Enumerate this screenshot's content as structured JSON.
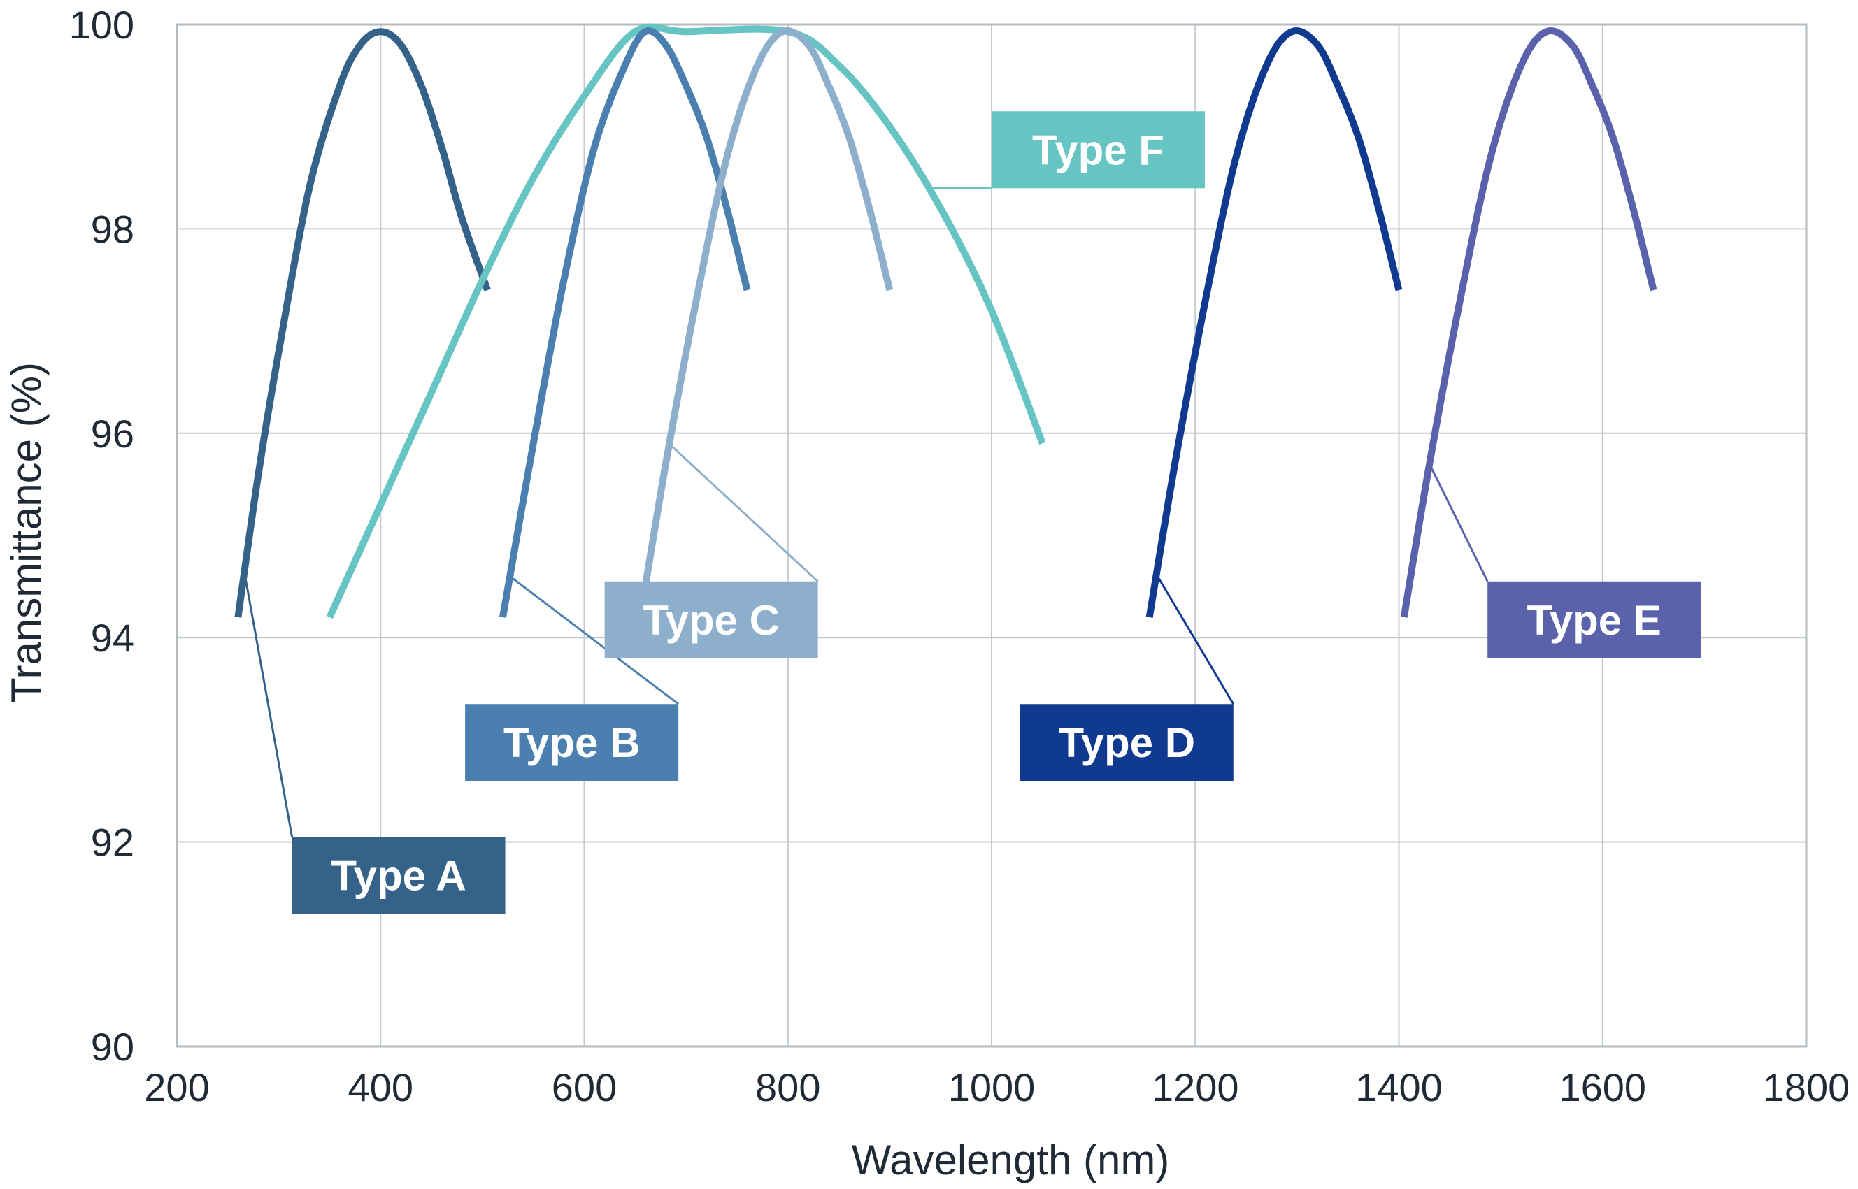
{
  "chart_data": {
    "type": "line",
    "title": "",
    "xlabel": "Wavelength (nm)",
    "ylabel": "Transmittance (%)",
    "xlim": [
      200,
      1800
    ],
    "ylim": [
      90,
      100
    ],
    "x_ticks": [
      200,
      400,
      600,
      800,
      1000,
      1200,
      1400,
      1600,
      1800
    ],
    "y_ticks": [
      90,
      92,
      94,
      96,
      98,
      100
    ],
    "grid": true,
    "legend": "callout labels",
    "series": [
      {
        "name": "Type A",
        "color": "#356288",
        "x": [
          260,
          280,
          300,
          330,
          360,
          380,
          400,
          420,
          440,
          460,
          480,
          505
        ],
        "y": [
          94.2,
          95.6,
          96.8,
          98.4,
          99.4,
          99.8,
          99.93,
          99.8,
          99.4,
          98.8,
          98.1,
          97.4
        ]
      },
      {
        "name": "Type F",
        "color": "#66c4c2",
        "x": [
          350,
          400,
          450,
          500,
          550,
          600,
          650,
          700,
          800,
          850,
          900,
          950,
          1000,
          1050
        ],
        "y": [
          94.2,
          95.3,
          96.4,
          97.5,
          98.5,
          99.3,
          99.93,
          99.93,
          99.93,
          99.6,
          99.0,
          98.2,
          97.2,
          95.9
        ]
      },
      {
        "name": "Type B",
        "color": "#4a7fb0",
        "x": [
          520,
          550,
          580,
          610,
          640,
          660,
          680,
          700,
          720,
          740,
          760
        ],
        "y": [
          94.2,
          95.9,
          97.5,
          98.8,
          99.6,
          99.93,
          99.8,
          99.4,
          98.9,
          98.2,
          97.4
        ]
      },
      {
        "name": "Type C",
        "color": "#8eafcc",
        "x": [
          655,
          680,
          710,
          740,
          770,
          795,
          820,
          840,
          860,
          880,
          900
        ],
        "y": [
          94.2,
          95.7,
          97.3,
          98.7,
          99.6,
          99.93,
          99.8,
          99.4,
          98.9,
          98.2,
          97.4
        ]
      },
      {
        "name": "Type D",
        "color": "#0f3a8f",
        "x": [
          1155,
          1180,
          1210,
          1240,
          1270,
          1295,
          1320,
          1340,
          1360,
          1380,
          1400
        ],
        "y": [
          94.2,
          95.7,
          97.3,
          98.7,
          99.6,
          99.93,
          99.8,
          99.4,
          98.9,
          98.2,
          97.4
        ]
      },
      {
        "name": "Type E",
        "color": "#5a62ab",
        "x": [
          1405,
          1430,
          1460,
          1490,
          1520,
          1545,
          1570,
          1590,
          1610,
          1630,
          1650
        ],
        "y": [
          94.2,
          95.7,
          97.3,
          98.7,
          99.6,
          99.93,
          99.8,
          99.4,
          98.9,
          98.2,
          97.4
        ]
      }
    ],
    "annotations": [
      {
        "series": "Type A",
        "text": "Type A",
        "color": "#356288",
        "anchor": [
          267,
          94.6
        ],
        "box": [
          313,
          92.05
        ]
      },
      {
        "series": "Type B",
        "text": "Type B",
        "color": "#4a7fb0",
        "anchor": [
          527,
          94.6
        ],
        "box": [
          483,
          93.35
        ]
      },
      {
        "series": "Type C",
        "text": "Type C",
        "color": "#8eafcc",
        "anchor": [
          683,
          95.9
        ],
        "box": [
          620,
          94.55
        ]
      },
      {
        "series": "Type D",
        "text": "Type D",
        "color": "#0f3a8f",
        "anchor": [
          1163,
          94.6
        ],
        "box": [
          1028,
          93.35
        ]
      },
      {
        "series": "Type E",
        "text": "Type E",
        "color": "#5a62ab",
        "anchor": [
          1430,
          95.7
        ],
        "box": [
          1487,
          94.55
        ]
      },
      {
        "series": "Type F",
        "text": "Type F",
        "color": "#66c4c2",
        "anchor": [
          940,
          98.4
        ],
        "box": [
          1000,
          99.15
        ]
      }
    ]
  }
}
